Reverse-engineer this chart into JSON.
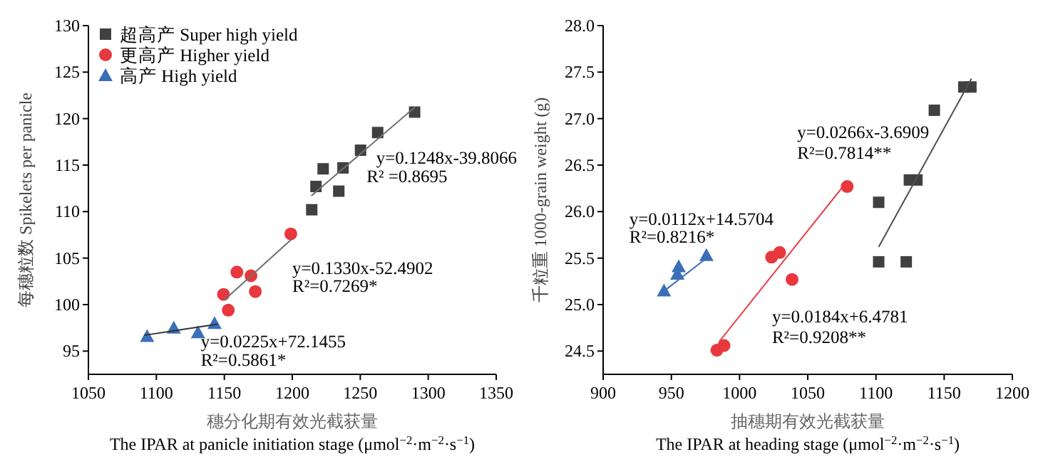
{
  "chart_data": [
    {
      "type": "scatter",
      "xlabel": "穗分化期有效光截获量\nThe IPAR at panicle initiation stage (μmol$^{−2}$·m$^{−2}$·s$^{−1}$)",
      "ylabel": "每穗粒数 Spikelets per panicle",
      "xlim": [
        1050,
        1350
      ],
      "xticks": [
        1050,
        1100,
        1150,
        1200,
        1250,
        1300,
        1350
      ],
      "ylim": [
        92.5,
        130
      ],
      "yticks": [
        95,
        100,
        105,
        110,
        115,
        120,
        125,
        130
      ],
      "grid": false,
      "legend": "top left",
      "series": [
        {
          "name": "超高产 Super high yield",
          "color": "#404040",
          "marker": "square",
          "x": [
            1214.3,
            1217.4,
            1222.7,
            1237.3,
            1234.2,
            1250.2,
            1262.8,
            1290
          ],
          "values": [
            110.2,
            112.7,
            114.6,
            114.7,
            112.2,
            116.6,
            118.5,
            120.7
          ]
        },
        {
          "name": "更高产 Higher yield",
          "color": "#e8383d",
          "marker": "circle",
          "x": [
            1149.4,
            1152.9,
            1159.2,
            1169.6,
            1172.8,
            1198.9
          ],
          "values": [
            101.1,
            99.4,
            103.5,
            103.1,
            101.4,
            107.6
          ]
        },
        {
          "name": "高产 High yield",
          "color": "#3a6fb7",
          "marker": "triangle",
          "x": [
            1093.2,
            1112.8,
            1130.6,
            1142.8
          ],
          "values": [
            96.6,
            97.5,
            97.0,
            98.0
          ]
        },
        {
          "type": "line",
          "color": "#707070",
          "x": [
            1214,
            1290
          ],
          "values": [
            111.7,
            121.2
          ]
        },
        {
          "type": "line",
          "color": "#707070",
          "x": [
            1150,
            1200
          ],
          "values": [
            100.5,
            107.1
          ]
        },
        {
          "type": "line",
          "color": "#303030",
          "x": [
            1091,
            1145
          ],
          "values": [
            96.7,
            97.9
          ]
        }
      ],
      "annotations": [
        "y=0.1248x-39.8066",
        "R² =0.8695",
        "y=0.1330x-52.4902",
        "R²=0.7269*",
        "y=0.0225x+72.1455",
        "R²=0.5861*"
      ]
    },
    {
      "type": "scatter",
      "xlabel": "抽穗期有效光截获量\nThe IPAR at heading stage (μmol$^{−2}$·m$^{−2}$·s$^{−1}$)",
      "ylabel": "千粒重 1000-grain weight (g)",
      "xlim": [
        900,
        1200
      ],
      "xticks": [
        900,
        950,
        1000,
        1050,
        1100,
        1150,
        1200
      ],
      "ylim": [
        24.25,
        28
      ],
      "yticks": [
        24.5,
        {
          "value": 25,
          "label": "25.0"
        },
        25.5,
        {
          "value": 26,
          "label": "26.0"
        },
        26.5,
        {
          "value": 27,
          "label": "27.0"
        },
        27.5,
        {
          "value": 28,
          "label": "28.0"
        }
      ],
      "grid": false,
      "series": [
        {
          "color": "#404040",
          "marker": "square",
          "x": [
            1102,
            1102,
            1122.2,
            1124.5,
            1130,
            1142.8,
            1164.4,
            1169.6
          ],
          "values": [
            25.46,
            26.1,
            25.46,
            26.34,
            26.34,
            27.09,
            27.34,
            27.34
          ]
        },
        {
          "color": "#e8383d",
          "marker": "circle",
          "x": [
            983.4,
            988.6,
            1023.5,
            1029.4,
            1038.5,
            1078.9
          ],
          "values": [
            24.51,
            24.56,
            25.51,
            25.56,
            25.27,
            26.27
          ]
        },
        {
          "color": "#3a6fb7",
          "marker": "triangle",
          "x": [
            944.6,
            954.4,
            955.4,
            975.7
          ],
          "values": [
            25.15,
            25.33,
            25.41,
            25.53
          ]
        },
        {
          "type": "line",
          "color": "#505050",
          "x": [
            1102,
            1170
          ],
          "values": [
            25.62,
            27.43
          ]
        },
        {
          "type": "line",
          "color": "#e8383d",
          "x": [
            985,
            1078
          ],
          "values": [
            24.6,
            26.31
          ]
        },
        {
          "type": "line",
          "color": "#3a6fb7",
          "x": [
            945,
            975
          ],
          "values": [
            25.15,
            25.49
          ]
        }
      ],
      "annotations": [
        "y=0.0266x-3.6909",
        "R²=0.7814**",
        "y=0.0112x+14.5704",
        "R²=0.8216*",
        "y=0.0184x+6.4781",
        "R²=0.9208**"
      ]
    }
  ]
}
